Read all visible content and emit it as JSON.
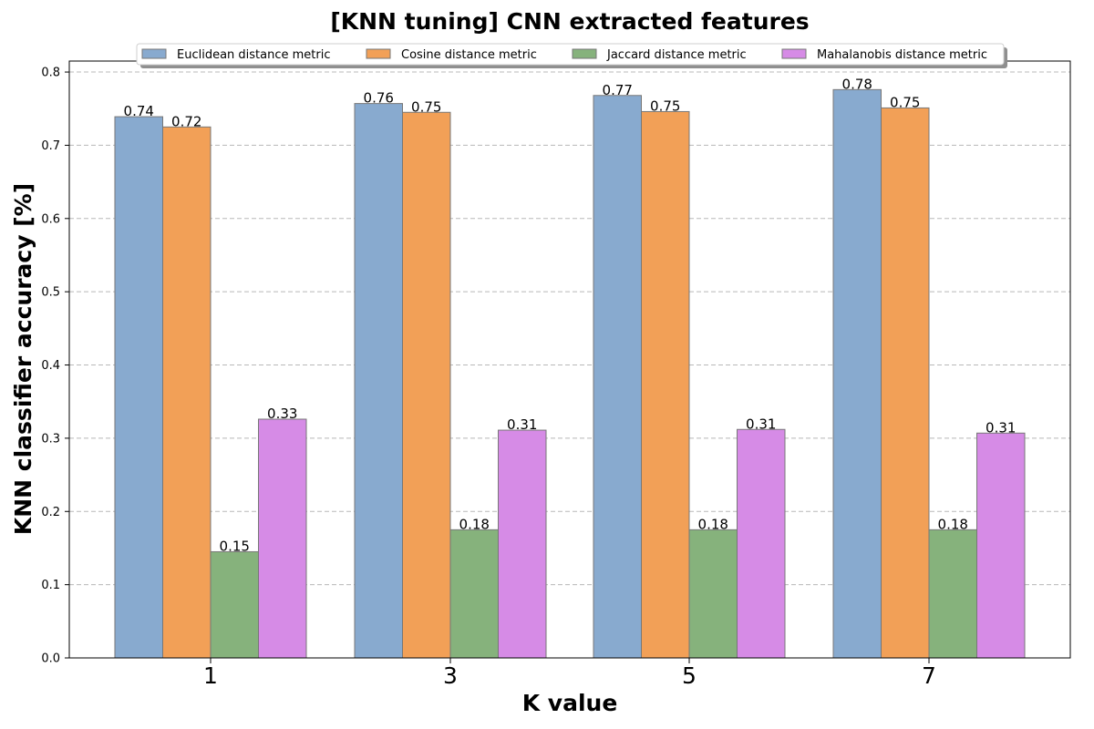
{
  "chart_data": {
    "type": "bar",
    "title": "[KNN tuning] CNN extracted features",
    "xlabel": "K value",
    "ylabel": "KNN classifier accuracy [%]",
    "categories": [
      "1",
      "3",
      "5",
      "7"
    ],
    "y_ticks": [
      "0.0",
      "0.1",
      "0.2",
      "0.3",
      "0.4",
      "0.5",
      "0.6",
      "0.7",
      "0.8"
    ],
    "ylim": [
      0,
      0.815
    ],
    "grid": "horizontal dashed",
    "legend_position": "top-center",
    "series": [
      {
        "name": "Euclidean distance metric",
        "color": "#88aacf",
        "values": [
          0.739,
          0.757,
          0.768,
          0.776
        ],
        "labels": [
          "0.74",
          "0.76",
          "0.77",
          "0.78"
        ]
      },
      {
        "name": "Cosine distance metric",
        "color": "#f2a057",
        "values": [
          0.725,
          0.745,
          0.746,
          0.751
        ],
        "labels": [
          "0.72",
          "0.75",
          "0.75",
          "0.75"
        ]
      },
      {
        "name": "Jaccard distance metric",
        "color": "#86b27c",
        "values": [
          0.145,
          0.175,
          0.175,
          0.175
        ],
        "labels": [
          "0.15",
          "0.18",
          "0.18",
          "0.18"
        ]
      },
      {
        "name": "Mahalanobis distance metric",
        "color": "#d68be6",
        "values": [
          0.326,
          0.311,
          0.312,
          0.307
        ],
        "labels": [
          "0.33",
          "0.31",
          "0.31",
          "0.31"
        ]
      }
    ]
  }
}
